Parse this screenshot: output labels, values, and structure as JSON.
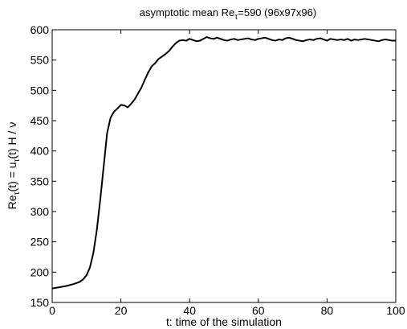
{
  "chart_data": {
    "type": "line",
    "title": {
      "pre": "asymptotic mean Re",
      "sub": "τ",
      "post": "=590 (96x97x96)"
    },
    "xlabel": "t: time of the simulation",
    "ylabel": {
      "a": "Re",
      "a_sub": "τ",
      "b": "(t) = u",
      "b_sub": "τ",
      "c": "(t) H / ν"
    },
    "xlim": [
      0,
      100
    ],
    "ylim": [
      150,
      600
    ],
    "xticks": [
      0,
      20,
      40,
      60,
      80,
      100
    ],
    "yticks": [
      150,
      200,
      250,
      300,
      350,
      400,
      450,
      500,
      550,
      600
    ],
    "grid": false,
    "series": [
      {
        "x": [
          0,
          2,
          4,
          6,
          8,
          9,
          10,
          11,
          12,
          13,
          14,
          15,
          16,
          17,
          18,
          19,
          20,
          21,
          22,
          23,
          24,
          25,
          26,
          27,
          28,
          29,
          30,
          31,
          32,
          33,
          34,
          35,
          36,
          37,
          38,
          39,
          40,
          41,
          42,
          43,
          44,
          45,
          46,
          47,
          48,
          49,
          50,
          51,
          52,
          53,
          54,
          55,
          56,
          57,
          58,
          59,
          60,
          61,
          62,
          63,
          64,
          65,
          66,
          67,
          68,
          69,
          70,
          71,
          72,
          73,
          74,
          75,
          76,
          77,
          78,
          79,
          80,
          81,
          82,
          83,
          84,
          85,
          86,
          87,
          88,
          89,
          90,
          91,
          92,
          93,
          94,
          95,
          96,
          97,
          98,
          99,
          100
        ],
        "y": [
          173,
          175,
          177,
          180,
          184,
          188,
          195,
          208,
          232,
          270,
          320,
          375,
          430,
          455,
          465,
          470,
          476,
          475,
          472,
          478,
          485,
          495,
          505,
          518,
          530,
          540,
          545,
          552,
          556,
          560,
          565,
          572,
          578,
          582,
          583,
          582,
          585,
          583,
          581,
          582,
          585,
          588,
          586,
          585,
          587,
          585,
          583,
          582,
          584,
          585,
          583,
          584,
          585,
          586,
          584,
          583,
          585,
          586,
          587,
          585,
          583,
          582,
          584,
          583,
          586,
          587,
          585,
          583,
          582,
          581,
          583,
          584,
          583,
          585,
          586,
          584,
          582,
          585,
          584,
          583,
          584,
          583,
          585,
          582,
          584,
          583,
          584,
          585,
          584,
          583,
          582,
          581,
          583,
          584,
          583,
          582,
          582
        ]
      }
    ]
  }
}
